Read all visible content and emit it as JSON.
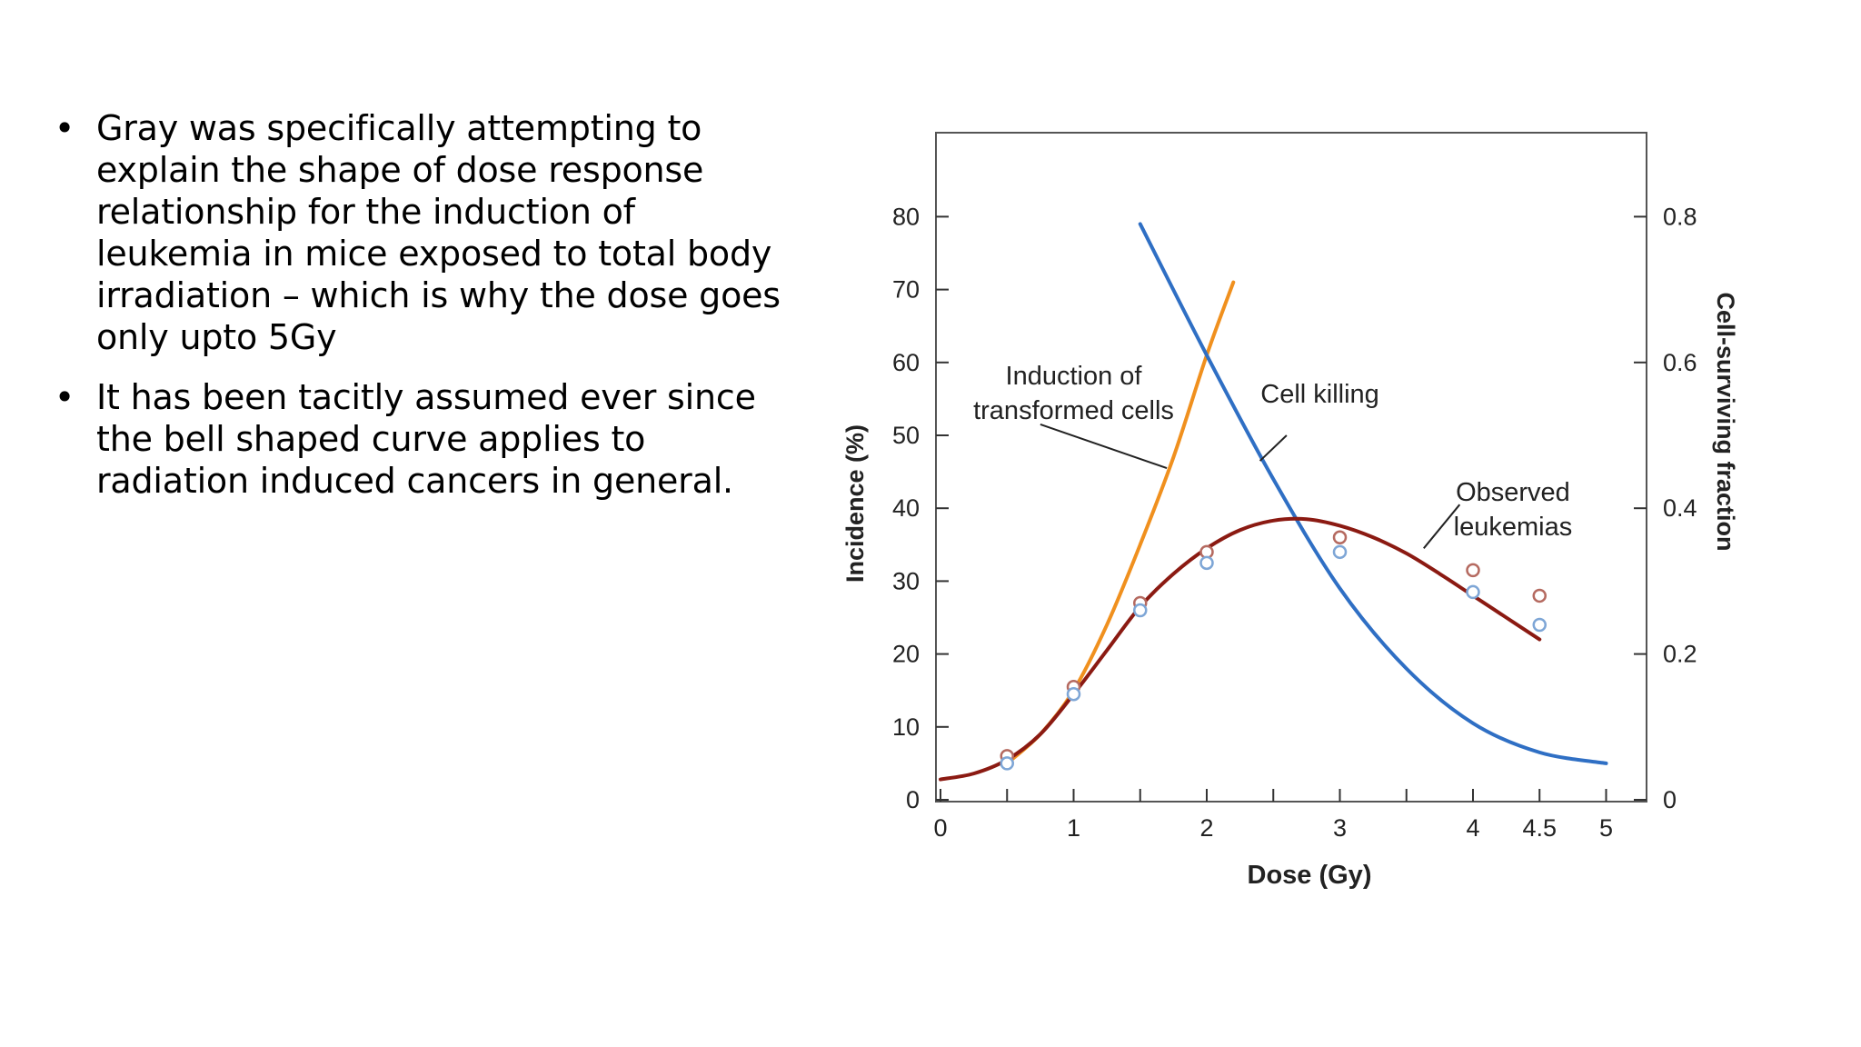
{
  "slide": {
    "bullet_glyph": "•",
    "bullets": [
      "Gray was specifically attempting to explain the shape of dose response relationship for the induction of leukemia in mice exposed to total body irradiation – which is why the dose goes only upto 5Gy",
      "It has been tacitly assumed ever since the bell shaped curve applies to radiation induced cancers in general."
    ]
  },
  "chart_data": {
    "type": "line",
    "title": "",
    "xlabel": "Dose (Gy)",
    "ylabel": "Incidence (%)",
    "y2label": "Cell-surviving fraction",
    "xlim": [
      0,
      5.3
    ],
    "ylim": [
      0,
      91
    ],
    "y2lim": [
      0,
      0.91
    ],
    "x_ticks": [
      0,
      1,
      2,
      3,
      4,
      4.5,
      5
    ],
    "x_minor_ticks": [
      0.5,
      1.5,
      2.5,
      3.5
    ],
    "y_ticks": [
      0,
      10,
      20,
      30,
      40,
      50,
      60,
      70,
      80
    ],
    "y2_ticks": [
      0,
      0.2,
      0.4,
      0.6,
      0.8
    ],
    "grid": false,
    "series": [
      {
        "name": "Induction of transformed cells",
        "axis": "left",
        "color": "#f0901e",
        "x": [
          0.5,
          0.75,
          1.0,
          1.25,
          1.5,
          1.75,
          2.0,
          2.2
        ],
        "y": [
          5,
          9,
          15,
          24,
          35,
          47,
          61,
          71
        ]
      },
      {
        "name": "Cell killing",
        "axis": "right",
        "color": "#2f6fc4",
        "x": [
          1.5,
          2.0,
          2.5,
          3.0,
          3.5,
          4.0,
          4.5,
          5.0
        ],
        "y": [
          0.79,
          0.61,
          0.44,
          0.29,
          0.18,
          0.105,
          0.065,
          0.05
        ]
      },
      {
        "name": "Observed leukemias",
        "axis": "left",
        "color": "#8b1a12",
        "x": [
          0,
          0.25,
          0.5,
          0.75,
          1.0,
          1.25,
          1.5,
          1.75,
          2.0,
          2.25,
          2.5,
          2.75,
          3.0,
          3.25,
          3.5,
          3.75,
          4.0,
          4.25,
          4.5
        ],
        "y": [
          2.8,
          3.6,
          5.5,
          9,
          14.5,
          20.5,
          26.5,
          31,
          34.5,
          37,
          38.3,
          38.5,
          37.6,
          36,
          33.8,
          31,
          28,
          25,
          22
        ]
      }
    ],
    "points": [
      {
        "name": "observed-red",
        "color": "#b56a60",
        "x": [
          0.5,
          1.0,
          1.5,
          2.0,
          3.0,
          4.0,
          4.5
        ],
        "y": [
          6,
          15.5,
          27,
          34,
          36,
          31.5,
          28
        ]
      },
      {
        "name": "observed-blue",
        "color": "#7ea6d6",
        "x": [
          0.5,
          1.0,
          1.5,
          2.0,
          3.0,
          4.0,
          4.5
        ],
        "y": [
          5,
          14.5,
          26,
          32.5,
          34,
          28.5,
          24
        ]
      }
    ],
    "annotations": [
      {
        "lines": [
          "Induction of",
          "transformed cells"
        ],
        "x": 1.0,
        "y": 57
      },
      {
        "lines": [
          "Cell killing"
        ],
        "x": 2.85,
        "y": 54.5
      },
      {
        "lines": [
          "Observed",
          "leukemias"
        ],
        "x": 4.3,
        "y": 41
      }
    ]
  }
}
